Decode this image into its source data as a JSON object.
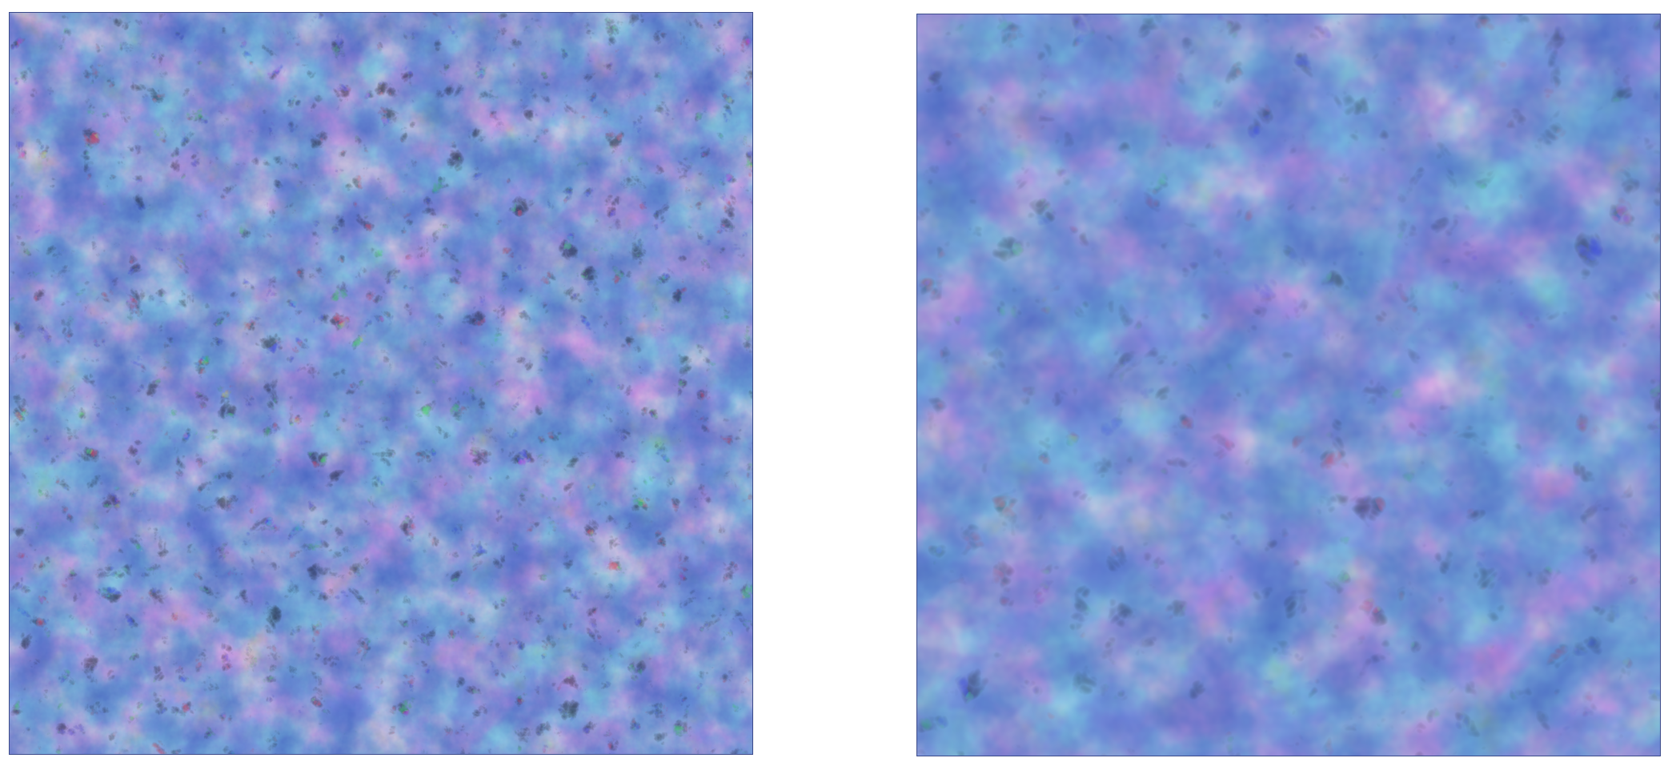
{
  "figure": {
    "panels": [
      {
        "id": "left",
        "depiction": "density-field",
        "colormap": [
          "#3a4fb0",
          "#5a78c8",
          "#a9b8d6",
          "#d8b8a0",
          "#e08a66",
          "#c2321f"
        ],
        "background_color": "#4a67c2"
      },
      {
        "id": "right",
        "depiction": "density-field",
        "colormap": [
          "#3a4fb0",
          "#5a78c8",
          "#a9b8d6",
          "#d8b8a0",
          "#e08a66",
          "#c2321f"
        ],
        "background_color": "#4a67c2"
      }
    ]
  }
}
